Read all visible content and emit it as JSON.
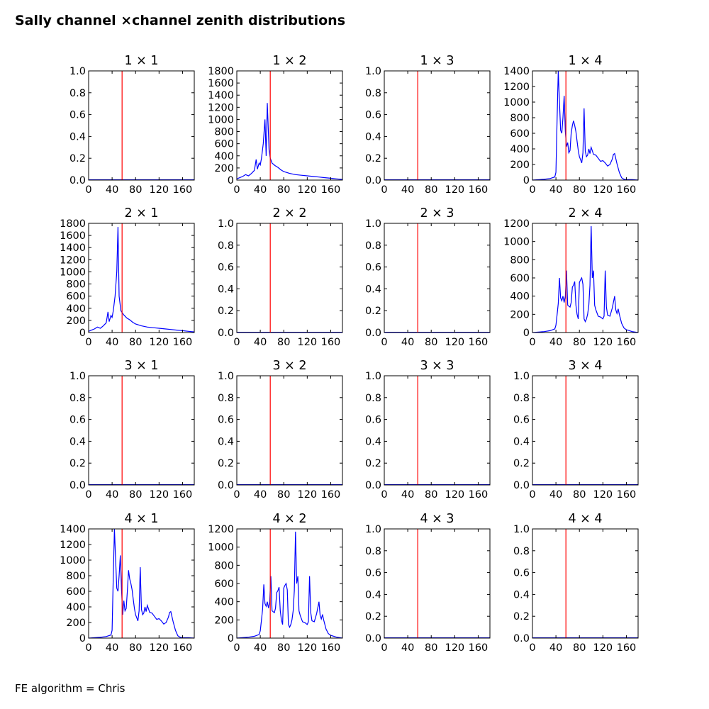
{
  "figure": {
    "title": "Sally channel ×channel zenith distributions",
    "footer": "FE algorithm = Chris",
    "colors": {
      "line": "#0000ff",
      "marker": "#ff0000",
      "axes": "#000000"
    }
  },
  "chart_data": [
    {
      "type": "line",
      "title": "1 × 1",
      "xlim": [
        0,
        180
      ],
      "ylim": [
        0,
        1
      ],
      "xticks": [
        "0",
        "40",
        "80",
        "120",
        "160"
      ],
      "yticks": [
        "0.0",
        "0.2",
        "0.4",
        "0.6",
        "0.8",
        "1.0"
      ],
      "vline_x": 57,
      "series": []
    },
    {
      "type": "line",
      "title": "1 × 2",
      "xlim": [
        0,
        180
      ],
      "ylim": [
        0,
        1800
      ],
      "xticks": [
        "0",
        "40",
        "80",
        "120",
        "160"
      ],
      "yticks": [
        "0",
        "200",
        "400",
        "600",
        "800",
        "1000",
        "1200",
        "1400",
        "1600",
        "1800"
      ],
      "vline_x": 57,
      "series": [
        {
          "x": [
            0,
            5,
            10,
            15,
            20,
            25,
            30,
            33,
            35,
            38,
            40,
            42,
            45,
            48,
            50,
            52,
            55,
            57,
            60,
            65,
            70,
            75,
            80,
            90,
            100,
            110,
            120,
            130,
            140,
            150,
            160,
            170,
            180
          ],
          "y": [
            20,
            40,
            60,
            90,
            70,
            110,
            160,
            340,
            180,
            280,
            250,
            360,
            600,
            1000,
            400,
            1270,
            500,
            360,
            280,
            240,
            210,
            170,
            140,
            110,
            90,
            80,
            70,
            60,
            50,
            40,
            30,
            20,
            10
          ]
        }
      ]
    },
    {
      "type": "line",
      "title": "1 × 3",
      "xlim": [
        0,
        180
      ],
      "ylim": [
        0,
        1
      ],
      "xticks": [
        "0",
        "40",
        "80",
        "120",
        "160"
      ],
      "yticks": [
        "0.0",
        "0.2",
        "0.4",
        "0.6",
        "0.8",
        "1.0"
      ],
      "vline_x": 57,
      "series": []
    },
    {
      "type": "line",
      "title": "1 × 4",
      "xlim": [
        0,
        180
      ],
      "ylim": [
        0,
        1400
      ],
      "xticks": [
        "0",
        "40",
        "80",
        "120",
        "160"
      ],
      "yticks": [
        "0",
        "200",
        "400",
        "600",
        "800",
        "1000",
        "1200",
        "1400"
      ],
      "vline_x": 57,
      "series": [
        {
          "x": [
            0,
            20,
            30,
            38,
            40,
            42,
            44,
            46,
            48,
            50,
            52,
            54,
            56,
            58,
            60,
            62,
            64,
            66,
            68,
            70,
            72,
            74,
            76,
            78,
            80,
            82,
            84,
            86,
            88,
            90,
            92,
            94,
            96,
            98,
            100,
            104,
            108,
            112,
            116,
            120,
            124,
            128,
            132,
            136,
            138,
            140,
            144,
            148,
            152,
            156,
            160,
            170,
            180
          ],
          "y": [
            0,
            10,
            20,
            40,
            100,
            800,
            1400,
            1000,
            640,
            600,
            800,
            1080,
            620,
            430,
            480,
            350,
            380,
            600,
            700,
            760,
            700,
            620,
            500,
            380,
            300,
            260,
            220,
            350,
            920,
            370,
            300,
            320,
            400,
            340,
            420,
            330,
            320,
            280,
            240,
            250,
            220,
            180,
            200,
            270,
            330,
            340,
            210,
            100,
            30,
            10,
            5,
            5,
            0
          ]
        }
      ]
    },
    {
      "type": "line",
      "title": "2 × 1",
      "xlim": [
        0,
        180
      ],
      "ylim": [
        0,
        1800
      ],
      "xticks": [
        "0",
        "40",
        "80",
        "120",
        "160"
      ],
      "yticks": [
        "0",
        "200",
        "400",
        "600",
        "800",
        "1000",
        "1200",
        "1400",
        "1600",
        "1800"
      ],
      "vline_x": 57,
      "series": [
        {
          "x": [
            0,
            5,
            10,
            15,
            20,
            25,
            30,
            33,
            35,
            38,
            40,
            42,
            45,
            48,
            50,
            52,
            55,
            57,
            60,
            65,
            70,
            75,
            80,
            90,
            100,
            110,
            120,
            130,
            140,
            150,
            160,
            170,
            180
          ],
          "y": [
            20,
            40,
            60,
            90,
            70,
            110,
            160,
            340,
            180,
            280,
            250,
            360,
            600,
            1000,
            1740,
            600,
            360,
            330,
            290,
            240,
            210,
            170,
            140,
            110,
            90,
            80,
            70,
            60,
            50,
            40,
            30,
            20,
            10
          ]
        }
      ]
    },
    {
      "type": "line",
      "title": "2 × 2",
      "xlim": [
        0,
        180
      ],
      "ylim": [
        0,
        1
      ],
      "xticks": [
        "0",
        "40",
        "80",
        "120",
        "160"
      ],
      "yticks": [
        "0.0",
        "0.2",
        "0.4",
        "0.6",
        "0.8",
        "1.0"
      ],
      "vline_x": 57,
      "series": []
    },
    {
      "type": "line",
      "title": "2 × 3",
      "xlim": [
        0,
        180
      ],
      "ylim": [
        0,
        1
      ],
      "xticks": [
        "0",
        "40",
        "80",
        "120",
        "160"
      ],
      "yticks": [
        "0.0",
        "0.2",
        "0.4",
        "0.6",
        "0.8",
        "1.0"
      ],
      "vline_x": 57,
      "series": []
    },
    {
      "type": "line",
      "title": "2 × 4",
      "xlim": [
        0,
        180
      ],
      "ylim": [
        0,
        1200
      ],
      "xticks": [
        "0",
        "40",
        "80",
        "120",
        "160"
      ],
      "yticks": [
        "0",
        "200",
        "400",
        "600",
        "800",
        "1000",
        "1200"
      ],
      "vline_x": 57,
      "series": [
        {
          "x": [
            0,
            20,
            30,
            38,
            40,
            42,
            44,
            46,
            48,
            50,
            52,
            54,
            56,
            58,
            60,
            62,
            64,
            66,
            68,
            70,
            72,
            74,
            76,
            78,
            80,
            82,
            84,
            86,
            88,
            90,
            92,
            94,
            96,
            98,
            100,
            102,
            104,
            106,
            108,
            112,
            116,
            120,
            122,
            124,
            126,
            128,
            132,
            136,
            140,
            142,
            144,
            146,
            148,
            152,
            156,
            160,
            170,
            180
          ],
          "y": [
            0,
            10,
            20,
            40,
            80,
            200,
            320,
            600,
            380,
            350,
            400,
            330,
            400,
            680,
            300,
            290,
            280,
            330,
            500,
            520,
            560,
            300,
            200,
            150,
            550,
            580,
            600,
            530,
            150,
            120,
            150,
            200,
            300,
            520,
            1170,
            600,
            680,
            300,
            250,
            180,
            170,
            150,
            180,
            680,
            280,
            190,
            180,
            270,
            400,
            250,
            210,
            260,
            200,
            100,
            50,
            30,
            10,
            0
          ]
        }
      ]
    },
    {
      "type": "line",
      "title": "3 × 1",
      "xlim": [
        0,
        180
      ],
      "ylim": [
        0,
        1
      ],
      "xticks": [
        "0",
        "40",
        "80",
        "120",
        "160"
      ],
      "yticks": [
        "0.0",
        "0.2",
        "0.4",
        "0.6",
        "0.8",
        "1.0"
      ],
      "vline_x": 57,
      "series": []
    },
    {
      "type": "line",
      "title": "3 × 2",
      "xlim": [
        0,
        180
      ],
      "ylim": [
        0,
        1
      ],
      "xticks": [
        "0",
        "40",
        "80",
        "120",
        "160"
      ],
      "yticks": [
        "0.0",
        "0.2",
        "0.4",
        "0.6",
        "0.8",
        "1.0"
      ],
      "vline_x": 57,
      "series": []
    },
    {
      "type": "line",
      "title": "3 × 3",
      "xlim": [
        0,
        180
      ],
      "ylim": [
        0,
        1
      ],
      "xticks": [
        "0",
        "40",
        "80",
        "120",
        "160"
      ],
      "yticks": [
        "0.0",
        "0.2",
        "0.4",
        "0.6",
        "0.8",
        "1.0"
      ],
      "vline_x": 57,
      "series": []
    },
    {
      "type": "line",
      "title": "3 × 4",
      "xlim": [
        0,
        180
      ],
      "ylim": [
        0,
        1
      ],
      "xticks": [
        "0",
        "40",
        "80",
        "120",
        "160"
      ],
      "yticks": [
        "0.0",
        "0.2",
        "0.4",
        "0.6",
        "0.8",
        "1.0"
      ],
      "vline_x": 57,
      "series": []
    },
    {
      "type": "line",
      "title": "4 × 1",
      "xlim": [
        0,
        180
      ],
      "ylim": [
        0,
        1400
      ],
      "xticks": [
        "0",
        "40",
        "80",
        "120",
        "160"
      ],
      "yticks": [
        "0",
        "200",
        "400",
        "600",
        "800",
        "1000",
        "1200",
        "1400"
      ],
      "vline_x": 57,
      "series": [
        {
          "x": [
            0,
            20,
            30,
            38,
            40,
            42,
            44,
            46,
            48,
            50,
            52,
            54,
            56,
            58,
            60,
            62,
            64,
            66,
            68,
            70,
            72,
            74,
            76,
            78,
            80,
            82,
            84,
            86,
            88,
            90,
            92,
            94,
            96,
            98,
            100,
            104,
            108,
            112,
            116,
            120,
            124,
            128,
            132,
            136,
            138,
            140,
            144,
            148,
            152,
            156,
            160,
            170,
            180
          ],
          "y": [
            0,
            10,
            20,
            40,
            100,
            800,
            1400,
            1000,
            640,
            600,
            800,
            1060,
            620,
            300,
            480,
            350,
            380,
            600,
            870,
            760,
            700,
            620,
            500,
            380,
            300,
            260,
            220,
            350,
            910,
            370,
            300,
            320,
            400,
            340,
            420,
            330,
            320,
            280,
            240,
            250,
            220,
            180,
            200,
            270,
            330,
            340,
            210,
            100,
            30,
            10,
            5,
            5,
            0
          ]
        }
      ]
    },
    {
      "type": "line",
      "title": "4 × 2",
      "xlim": [
        0,
        180
      ],
      "ylim": [
        0,
        1200
      ],
      "xticks": [
        "0",
        "40",
        "80",
        "120",
        "160"
      ],
      "yticks": [
        "0",
        "200",
        "400",
        "600",
        "800",
        "1000",
        "1200"
      ],
      "vline_x": 57,
      "series": [
        {
          "x": [
            0,
            20,
            30,
            38,
            40,
            42,
            44,
            46,
            48,
            50,
            52,
            54,
            56,
            58,
            60,
            62,
            64,
            66,
            68,
            70,
            72,
            74,
            76,
            78,
            80,
            82,
            84,
            86,
            88,
            90,
            92,
            94,
            96,
            98,
            100,
            102,
            104,
            106,
            108,
            112,
            116,
            120,
            122,
            124,
            126,
            128,
            132,
            136,
            140,
            142,
            144,
            146,
            148,
            152,
            156,
            160,
            170,
            180
          ],
          "y": [
            0,
            10,
            20,
            40,
            80,
            200,
            320,
            590,
            380,
            350,
            400,
            330,
            400,
            680,
            300,
            290,
            280,
            330,
            500,
            520,
            560,
            300,
            200,
            150,
            550,
            580,
            600,
            530,
            150,
            120,
            150,
            200,
            300,
            520,
            1170,
            600,
            680,
            300,
            250,
            180,
            170,
            150,
            180,
            680,
            280,
            190,
            180,
            270,
            400,
            250,
            210,
            260,
            200,
            100,
            50,
            30,
            10,
            0
          ]
        }
      ]
    },
    {
      "type": "line",
      "title": "4 × 3",
      "xlim": [
        0,
        180
      ],
      "ylim": [
        0,
        1
      ],
      "xticks": [
        "0",
        "40",
        "80",
        "120",
        "160"
      ],
      "yticks": [
        "0.0",
        "0.2",
        "0.4",
        "0.6",
        "0.8",
        "1.0"
      ],
      "vline_x": 57,
      "series": []
    },
    {
      "type": "line",
      "title": "4 × 4",
      "xlim": [
        0,
        180
      ],
      "ylim": [
        0,
        1
      ],
      "xticks": [
        "0",
        "40",
        "80",
        "120",
        "160"
      ],
      "yticks": [
        "0.0",
        "0.2",
        "0.4",
        "0.6",
        "0.8",
        "1.0"
      ],
      "vline_x": 57,
      "series": []
    }
  ]
}
